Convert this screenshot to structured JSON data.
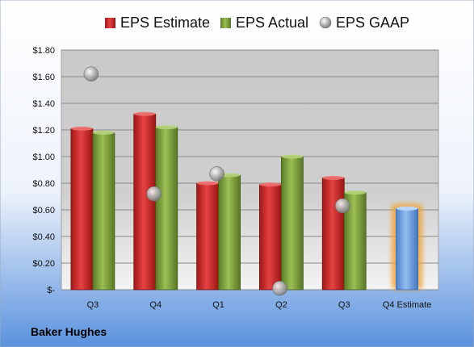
{
  "chart_data": {
    "type": "bar",
    "categories": [
      "Q3",
      "Q4",
      "Q1",
      "Q2",
      "Q3",
      "Q4 Estimate"
    ],
    "y_tick_labels": [
      "$-",
      "$0.20",
      "$0.40",
      "$0.60",
      "$0.80",
      "$1.00",
      "$1.20",
      "$1.40",
      "$1.60",
      "$1.80"
    ],
    "ylim": [
      0,
      1.8
    ],
    "grid": true,
    "legend_position": "top",
    "series": [
      {
        "name": "EPS Estimate",
        "kind": "bar",
        "color": "#d32a2a",
        "values": [
          1.21,
          1.32,
          0.8,
          0.79,
          0.84,
          null
        ]
      },
      {
        "name": "EPS Actual",
        "kind": "bar",
        "color": "#7ea03a",
        "values": [
          1.18,
          1.22,
          0.86,
          1.0,
          0.73,
          null
        ]
      },
      {
        "name": "EPS GAAP",
        "kind": "marker",
        "color": "#a6a6a6",
        "values": [
          1.62,
          0.72,
          0.87,
          0.01,
          0.63,
          null
        ]
      },
      {
        "name": "",
        "kind": "bar",
        "color": "#6fa3e0",
        "highlight": "#f0a030",
        "values": [
          null,
          null,
          null,
          null,
          null,
          0.61
        ]
      }
    ],
    "footer": "Baker Hughes"
  }
}
